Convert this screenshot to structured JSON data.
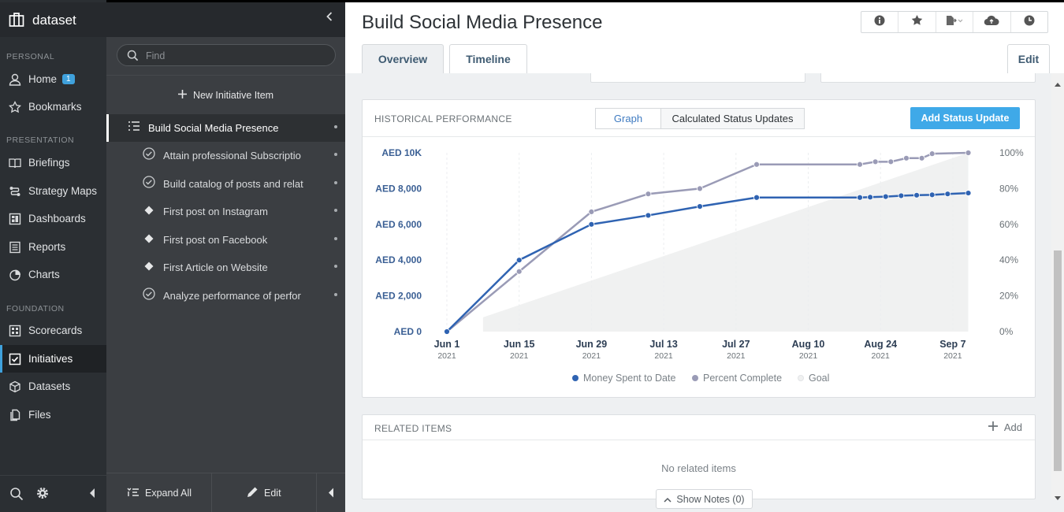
{
  "app": {
    "name": "dataset"
  },
  "sidebar": {
    "sections": {
      "personal": "PERSONAL",
      "presentation": "PRESENTATION",
      "foundation": "FOUNDATION"
    },
    "home": {
      "label": "Home",
      "badge": "1"
    },
    "bookmarks": "Bookmarks",
    "briefings": "Briefings",
    "strategy_maps": "Strategy Maps",
    "dashboards": "Dashboards",
    "reports": "Reports",
    "charts": "Charts",
    "scorecards": "Scorecards",
    "initiatives": "Initiatives",
    "datasets": "Datasets",
    "files": "Files"
  },
  "tree": {
    "search_placeholder": "Find",
    "new_item": "New Initiative Item",
    "items": [
      {
        "label": "Build Social Media Presence",
        "icon": "list-icon"
      },
      {
        "label": "Attain professional Subscriptio",
        "icon": "check-circle-icon"
      },
      {
        "label": "Build catalog of posts and relat",
        "icon": "check-circle-icon"
      },
      {
        "label": "First post on Instagram",
        "icon": "diamond-icon"
      },
      {
        "label": "First post on Facebook",
        "icon": "diamond-icon"
      },
      {
        "label": "First Article on Website",
        "icon": "diamond-icon"
      },
      {
        "label": "Analyze performance of perfor",
        "icon": "check-circle-icon"
      }
    ],
    "expand_all": "Expand All",
    "edit": "Edit"
  },
  "page": {
    "title": "Build Social Media Presence",
    "tabs": {
      "overview": "Overview",
      "timeline": "Timeline",
      "edit": "Edit"
    }
  },
  "performance": {
    "title": "HISTORICAL PERFORMANCE",
    "seg_graph": "Graph",
    "seg_status": "Calculated Status Updates",
    "add_button": "Add Status Update"
  },
  "chart_data": {
    "type": "line",
    "x_ticks": [
      {
        "label": "Jun 1",
        "year": "2021",
        "day": 0
      },
      {
        "label": "Jun 15",
        "year": "2021",
        "day": 14
      },
      {
        "label": "Jun 29",
        "year": "2021",
        "day": 28
      },
      {
        "label": "Jul 13",
        "year": "2021",
        "day": 42
      },
      {
        "label": "Jul 27",
        "year": "2021",
        "day": 56
      },
      {
        "label": "Aug 10",
        "year": "2021",
        "day": 70
      },
      {
        "label": "Aug 24",
        "year": "2021",
        "day": 84
      },
      {
        "label": "Sep 7",
        "year": "2021",
        "day": 98
      }
    ],
    "y_left_ticks": [
      "AED 0",
      "AED 2,000",
      "AED 4,000",
      "AED 6,000",
      "AED 8,000",
      "AED 10K"
    ],
    "y_right_ticks": [
      "0%",
      "20%",
      "40%",
      "60%",
      "80%",
      "100%"
    ],
    "ylim_left": [
      0,
      10000
    ],
    "ylim_right": [
      0,
      100
    ],
    "series": [
      {
        "name": "Money Spent to Date",
        "axis": "left",
        "color": "#2f63b2",
        "points": [
          [
            0,
            0
          ],
          [
            14,
            4000
          ],
          [
            28,
            6000
          ],
          [
            39,
            6500
          ],
          [
            49,
            7000
          ],
          [
            60,
            7500
          ],
          [
            80,
            7500
          ],
          [
            82,
            7520
          ],
          [
            85,
            7550
          ],
          [
            88,
            7600
          ],
          [
            91,
            7630
          ],
          [
            94,
            7650
          ],
          [
            97,
            7700
          ],
          [
            101,
            7750
          ]
        ]
      },
      {
        "name": "Percent Complete",
        "axis": "right",
        "color": "#9a9bb6",
        "points": [
          [
            0,
            0
          ],
          [
            14,
            33.6
          ],
          [
            28,
            67
          ],
          [
            39,
            77
          ],
          [
            49,
            80
          ],
          [
            60,
            93.5
          ],
          [
            80,
            93.5
          ],
          [
            83,
            95
          ],
          [
            86,
            95
          ],
          [
            89,
            97
          ],
          [
            92,
            97
          ],
          [
            94,
            99.5
          ],
          [
            101,
            100
          ]
        ]
      },
      {
        "name": "Goal",
        "axis": "right",
        "color": "#f0f1f1",
        "points": [
          [
            7,
            8
          ],
          [
            101,
            100
          ]
        ]
      }
    ],
    "grid": true
  },
  "related": {
    "title": "RELATED ITEMS",
    "add": "Add",
    "empty": "No related items"
  },
  "notes": {
    "label": "Show Notes (0)"
  },
  "colors": {
    "accent": "#3fa1dc",
    "money": "#2f63b2",
    "percent": "#9a9bb6"
  }
}
